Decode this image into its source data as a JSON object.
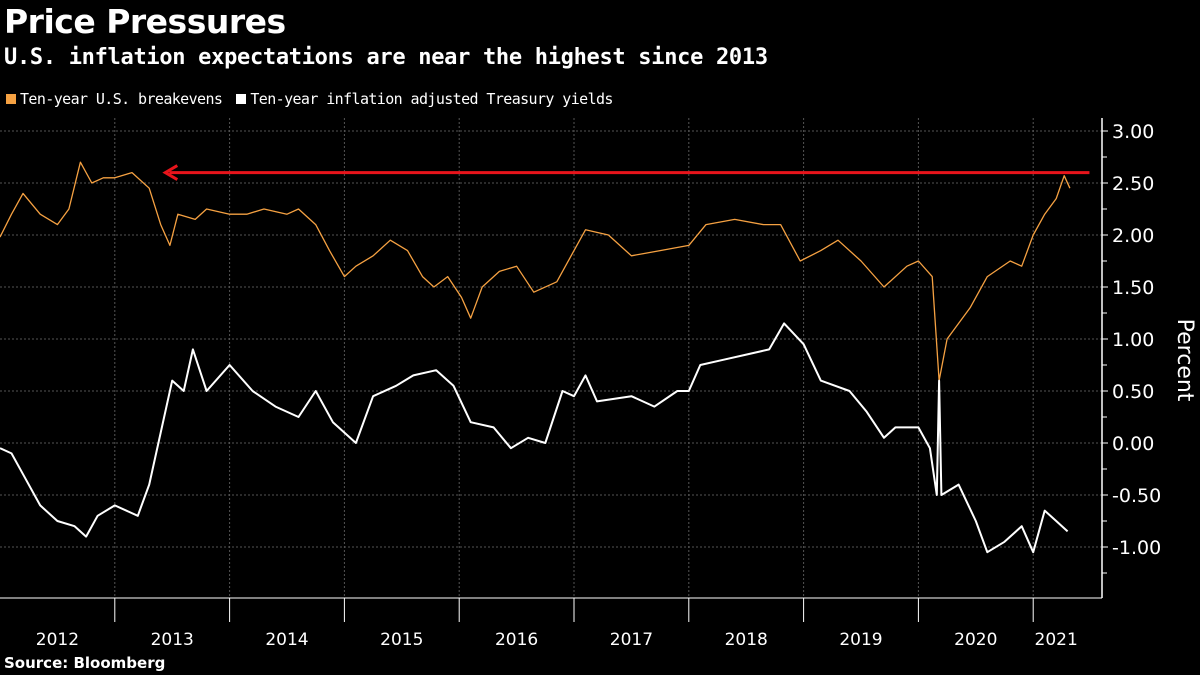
{
  "title": "Price Pressures",
  "subtitle": "U.S. inflation expectations are near the highest since 2013",
  "source": "Source: Bloomberg",
  "colors": {
    "breakevens": "#f5a142",
    "real_yields": "#ffffff",
    "arrow": "#e8141b",
    "grid": "#555555"
  },
  "chart_data": {
    "type": "line",
    "ylabel": "Percent",
    "ylim": [
      -1.5,
      3.1
    ],
    "yticks": [
      "3.00",
      "2.50",
      "2.00",
      "1.50",
      "1.00",
      "0.50",
      "0.00",
      "-0.50",
      "-1.00"
    ],
    "ytick_values": [
      3,
      2.5,
      2,
      1.5,
      1,
      0.5,
      0,
      -0.5,
      -1
    ],
    "xlim": [
      2012.0,
      2021.6
    ],
    "xticks": [
      "2012",
      "2013",
      "2014",
      "2015",
      "2016",
      "2017",
      "2018",
      "2019",
      "2020",
      "2021"
    ],
    "grid": true,
    "legend_placement": "top-left",
    "series": [
      {
        "name": "Ten-year U.S. breakevens",
        "color": "#f5a142",
        "points": [
          [
            2012.0,
            1.98
          ],
          [
            2012.1,
            2.2
          ],
          [
            2012.2,
            2.4
          ],
          [
            2012.35,
            2.2
          ],
          [
            2012.5,
            2.1
          ],
          [
            2012.6,
            2.25
          ],
          [
            2012.7,
            2.7
          ],
          [
            2012.8,
            2.5
          ],
          [
            2012.9,
            2.55
          ],
          [
            2013.0,
            2.55
          ],
          [
            2013.15,
            2.6
          ],
          [
            2013.3,
            2.45
          ],
          [
            2013.4,
            2.1
          ],
          [
            2013.48,
            1.9
          ],
          [
            2013.55,
            2.2
          ],
          [
            2013.7,
            2.15
          ],
          [
            2013.8,
            2.25
          ],
          [
            2014.0,
            2.2
          ],
          [
            2014.15,
            2.2
          ],
          [
            2014.3,
            2.25
          ],
          [
            2014.5,
            2.2
          ],
          [
            2014.6,
            2.25
          ],
          [
            2014.75,
            2.1
          ],
          [
            2014.87,
            1.85
          ],
          [
            2015.0,
            1.6
          ],
          [
            2015.1,
            1.7
          ],
          [
            2015.25,
            1.8
          ],
          [
            2015.4,
            1.95
          ],
          [
            2015.55,
            1.85
          ],
          [
            2015.68,
            1.6
          ],
          [
            2015.78,
            1.5
          ],
          [
            2015.9,
            1.6
          ],
          [
            2016.02,
            1.4
          ],
          [
            2016.1,
            1.2
          ],
          [
            2016.2,
            1.5
          ],
          [
            2016.35,
            1.65
          ],
          [
            2016.5,
            1.7
          ],
          [
            2016.65,
            1.45
          ],
          [
            2016.85,
            1.55
          ],
          [
            2017.0,
            1.85
          ],
          [
            2017.1,
            2.05
          ],
          [
            2017.3,
            2.0
          ],
          [
            2017.5,
            1.8
          ],
          [
            2017.75,
            1.85
          ],
          [
            2018.0,
            1.9
          ],
          [
            2018.15,
            2.1
          ],
          [
            2018.4,
            2.15
          ],
          [
            2018.65,
            2.1
          ],
          [
            2018.8,
            2.1
          ],
          [
            2018.97,
            1.75
          ],
          [
            2019.15,
            1.85
          ],
          [
            2019.3,
            1.95
          ],
          [
            2019.5,
            1.75
          ],
          [
            2019.7,
            1.5
          ],
          [
            2019.9,
            1.7
          ],
          [
            2020.0,
            1.75
          ],
          [
            2020.12,
            1.6
          ],
          [
            2020.18,
            0.6
          ],
          [
            2020.25,
            1.0
          ],
          [
            2020.45,
            1.3
          ],
          [
            2020.6,
            1.6
          ],
          [
            2020.8,
            1.75
          ],
          [
            2020.9,
            1.7
          ],
          [
            2021.0,
            2.0
          ],
          [
            2021.1,
            2.2
          ],
          [
            2021.2,
            2.35
          ],
          [
            2021.27,
            2.57
          ],
          [
            2021.32,
            2.45
          ]
        ]
      },
      {
        "name": "Ten-year inflation adjusted Treasury yields",
        "color": "#ffffff",
        "points": [
          [
            2012.0,
            -0.05
          ],
          [
            2012.1,
            -0.1
          ],
          [
            2012.2,
            -0.3
          ],
          [
            2012.35,
            -0.6
          ],
          [
            2012.5,
            -0.75
          ],
          [
            2012.65,
            -0.8
          ],
          [
            2012.75,
            -0.9
          ],
          [
            2012.85,
            -0.7
          ],
          [
            2013.0,
            -0.6
          ],
          [
            2013.2,
            -0.7
          ],
          [
            2013.3,
            -0.4
          ],
          [
            2013.4,
            0.1
          ],
          [
            2013.5,
            0.6
          ],
          [
            2013.6,
            0.5
          ],
          [
            2013.68,
            0.9
          ],
          [
            2013.8,
            0.5
          ],
          [
            2014.0,
            0.75
          ],
          [
            2014.2,
            0.5
          ],
          [
            2014.4,
            0.35
          ],
          [
            2014.6,
            0.25
          ],
          [
            2014.75,
            0.5
          ],
          [
            2014.9,
            0.2
          ],
          [
            2015.0,
            0.1
          ],
          [
            2015.1,
            0.0
          ],
          [
            2015.25,
            0.45
          ],
          [
            2015.45,
            0.55
          ],
          [
            2015.6,
            0.65
          ],
          [
            2015.8,
            0.7
          ],
          [
            2015.95,
            0.55
          ],
          [
            2016.1,
            0.2
          ],
          [
            2016.3,
            0.15
          ],
          [
            2016.45,
            -0.05
          ],
          [
            2016.6,
            0.05
          ],
          [
            2016.75,
            0.0
          ],
          [
            2016.9,
            0.5
          ],
          [
            2017.0,
            0.45
          ],
          [
            2017.1,
            0.65
          ],
          [
            2017.2,
            0.4
          ],
          [
            2017.5,
            0.45
          ],
          [
            2017.7,
            0.35
          ],
          [
            2017.9,
            0.5
          ],
          [
            2018.0,
            0.5
          ],
          [
            2018.1,
            0.75
          ],
          [
            2018.3,
            0.8
          ],
          [
            2018.5,
            0.85
          ],
          [
            2018.7,
            0.9
          ],
          [
            2018.83,
            1.15
          ],
          [
            2019.0,
            0.95
          ],
          [
            2019.15,
            0.6
          ],
          [
            2019.4,
            0.5
          ],
          [
            2019.55,
            0.3
          ],
          [
            2019.7,
            0.05
          ],
          [
            2019.8,
            0.15
          ],
          [
            2020.0,
            0.15
          ],
          [
            2020.1,
            -0.05
          ],
          [
            2020.16,
            -0.5
          ],
          [
            2020.18,
            0.6
          ],
          [
            2020.2,
            -0.5
          ],
          [
            2020.35,
            -0.4
          ],
          [
            2020.5,
            -0.75
          ],
          [
            2020.6,
            -1.05
          ],
          [
            2020.75,
            -0.95
          ],
          [
            2020.9,
            -0.8
          ],
          [
            2021.0,
            -1.05
          ],
          [
            2021.1,
            -0.65
          ],
          [
            2021.2,
            -0.75
          ],
          [
            2021.3,
            -0.85
          ]
        ]
      }
    ],
    "annotations": [
      {
        "type": "arrow",
        "value": 2.6,
        "from_x": 2021.49,
        "to_x": 2013.44,
        "color": "#e8141b"
      }
    ]
  }
}
